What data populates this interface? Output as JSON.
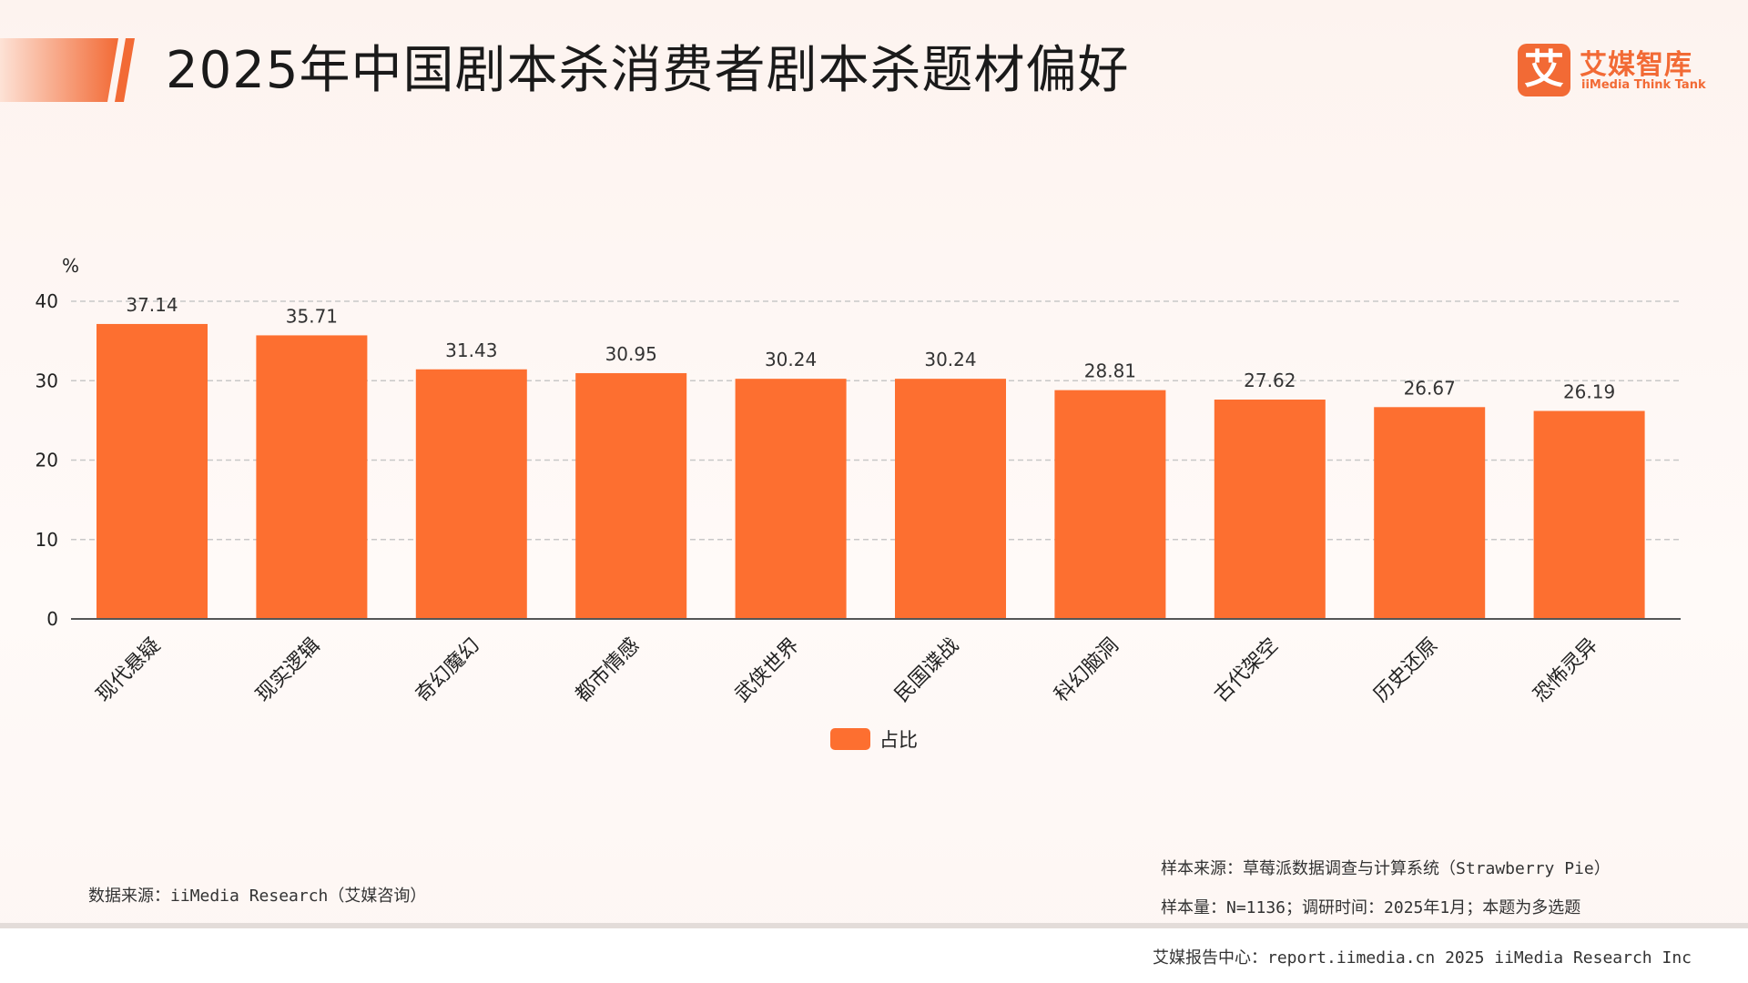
{
  "header": {
    "title": "2025年中国剧本杀消费者剧本杀题材偏好"
  },
  "logo": {
    "mark": "艾",
    "name_cn": "艾媒智库",
    "name_en": "iiMedia Think Tank"
  },
  "colors": {
    "bar": "#fd6f30",
    "accent": "#f26a35",
    "grid": "#c8c8c8",
    "axis": "#555555"
  },
  "chart_data": {
    "type": "bar",
    "title": "2025年中国剧本杀消费者剧本杀题材偏好",
    "ylabel": "%",
    "xlabel": "",
    "ylim": [
      0,
      40
    ],
    "yticks": [
      0,
      10,
      20,
      30,
      40
    ],
    "grid": true,
    "legend_position": "bottom-center",
    "categories": [
      "现代悬疑",
      "现实逻辑",
      "奇幻魔幻",
      "都市情感",
      "武侠世界",
      "民国谍战",
      "科幻脑洞",
      "古代架空",
      "历史还原",
      "恐怖灵异"
    ],
    "series": [
      {
        "name": "占比",
        "values": [
          37.14,
          35.71,
          31.43,
          30.95,
          30.24,
          30.24,
          28.81,
          27.62,
          26.67,
          26.19
        ]
      }
    ]
  },
  "notes": {
    "data_source": "数据来源：iiMedia Research（艾媒咨询）",
    "sample_source": "样本来源：草莓派数据调查与计算系统（Strawberry Pie）",
    "sample_size": "样本量：N=1136；调研时间：2025年1月；本题为多选题"
  },
  "footer": {
    "text": "艾媒报告中心：report.iimedia.cn   2025 iiMedia Research Inc"
  }
}
